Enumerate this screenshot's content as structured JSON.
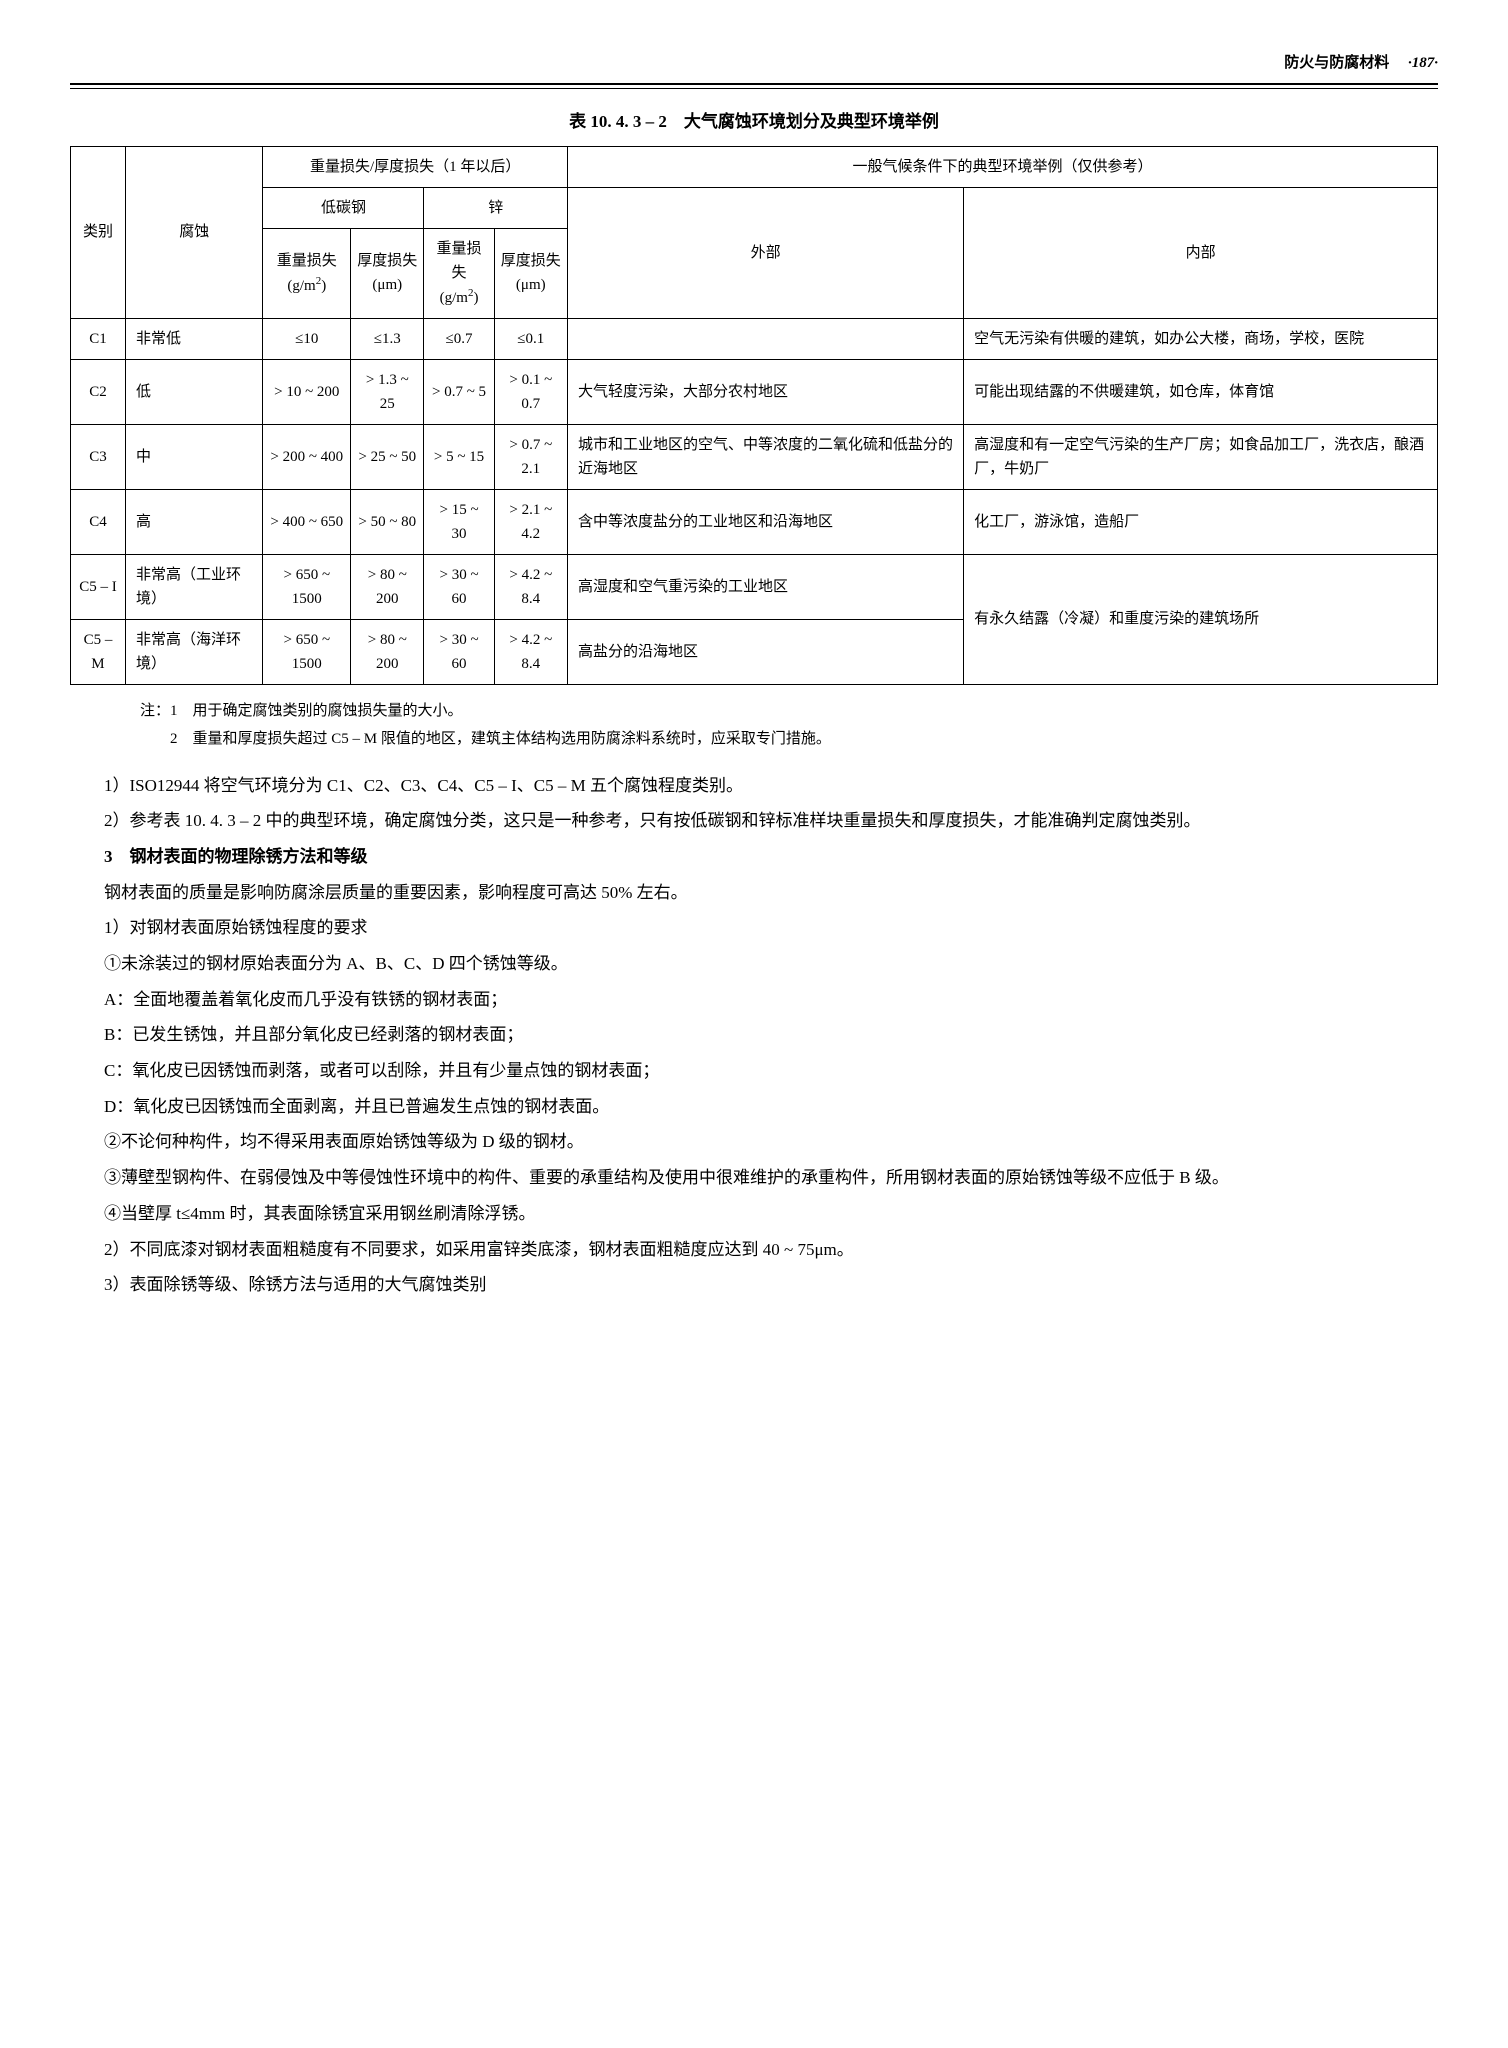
{
  "header": {
    "section": "防火与防腐材料",
    "dot": "·",
    "pageNum": "187"
  },
  "tableTitle": "表 10. 4. 3 – 2　大气腐蚀环境划分及典型环境举例",
  "tableHeaders": {
    "category": "类别",
    "corrosion": "腐蚀",
    "massLoss": "重量损失/厚度损失（1 年以后）",
    "typical": "一般气候条件下的典型环境举例（仅供参考）",
    "lowCarbon": "低碳钢",
    "zinc": "锌",
    "mass_g": "重量损失",
    "mass_unit": "(g/m²)",
    "depth_g": "厚度损失",
    "depth_unit": "(μm)",
    "outside": "外部",
    "inside": "内部"
  },
  "rows": [
    {
      "cat": "C1",
      "corr": "非常低",
      "m1": "≤10",
      "d1": "≤1.3",
      "m2": "≤0.7",
      "d2": "≤0.1",
      "out": "",
      "in": "空气无污染有供暖的建筑，如办公大楼，商场，学校，医院"
    },
    {
      "cat": "C2",
      "corr": "低",
      "m1": "> 10 ~ 200",
      "d1": "> 1.3 ~ 25",
      "m2": "> 0.7 ~ 5",
      "d2": "> 0.1 ~ 0.7",
      "out": "大气轻度污染，大部分农村地区",
      "in": "可能出现结露的不供暖建筑，如仓库，体育馆"
    },
    {
      "cat": "C3",
      "corr": "中",
      "m1": "> 200 ~ 400",
      "d1": "> 25 ~ 50",
      "m2": "> 5 ~ 15",
      "d2": "> 0.7 ~ 2.1",
      "out": "城市和工业地区的空气、中等浓度的二氧化硫和低盐分的近海地区",
      "in": "高湿度和有一定空气污染的生产厂房；如食品加工厂，洗衣店，酿酒厂，牛奶厂"
    },
    {
      "cat": "C4",
      "corr": "高",
      "m1": "> 400 ~ 650",
      "d1": "> 50 ~ 80",
      "m2": "> 15 ~ 30",
      "d2": "> 2.1 ~ 4.2",
      "out": "含中等浓度盐分的工业地区和沿海地区",
      "in": "化工厂，游泳馆，造船厂"
    },
    {
      "cat": "C5 – I",
      "corr": "非常高（工业环境）",
      "m1": "> 650 ~ 1500",
      "d1": "> 80 ~ 200",
      "m2": "> 30 ~ 60",
      "d2": "> 4.2 ~ 8.4",
      "out": "高湿度和空气重污染的工业地区",
      "in": ""
    },
    {
      "cat": "C5 – M",
      "corr": "非常高（海洋环境）",
      "m1": "> 650 ~ 1500",
      "d1": "> 80 ~ 200",
      "m2": "> 30 ~ 60",
      "d2": "> 4.2 ~ 8.4",
      "out": "高盐分的沿海地区",
      "in": "有永久结露（冷凝）和重度污染的建筑场所"
    }
  ],
  "notes": {
    "label": "注：",
    "n1": "1　用于确定腐蚀类别的腐蚀损失量的大小。",
    "n2": "2　重量和厚度损失超过 C5 – M 限值的地区，建筑主体结构选用防腐涂料系统时，应采取专门措施。"
  },
  "body": {
    "p1": "1）ISO12944 将空气环境分为 C1、C2、C3、C4、C5 – I、C5 – M 五个腐蚀程度类别。",
    "p2": "2）参考表 10. 4. 3 – 2 中的典型环境，确定腐蚀分类，这只是一种参考，只有按低碳钢和锌标准样块重量损失和厚度损失，才能准确判定腐蚀类别。",
    "h3": "3　钢材表面的物理除锈方法和等级",
    "p3": "钢材表面的质量是影响防腐涂层质量的重要因素，影响程度可高达 50% 左右。",
    "p4": "1）对钢材表面原始锈蚀程度的要求",
    "p5": "①未涂装过的钢材原始表面分为 A、B、C、D 四个锈蚀等级。",
    "p6": "A：全面地覆盖着氧化皮而几乎没有铁锈的钢材表面；",
    "p7": "B：已发生锈蚀，并且部分氧化皮已经剥落的钢材表面；",
    "p8": "C：氧化皮已因锈蚀而剥落，或者可以刮除，并且有少量点蚀的钢材表面；",
    "p9": "D：氧化皮已因锈蚀而全面剥离，并且已普遍发生点蚀的钢材表面。",
    "p10": "②不论何种构件，均不得采用表面原始锈蚀等级为 D 级的钢材。",
    "p11": "③薄壁型钢构件、在弱侵蚀及中等侵蚀性环境中的构件、重要的承重结构及使用中很难维护的承重构件，所用钢材表面的原始锈蚀等级不应低于 B 级。",
    "p12": "④当壁厚 t≤4mm 时，其表面除锈宜采用钢丝刷清除浮锈。",
    "p13": "2）不同底漆对钢材表面粗糙度有不同要求，如采用富锌类底漆，钢材表面粗糙度应达到 40 ~ 75μm。",
    "p14": "3）表面除锈等级、除锈方法与适用的大气腐蚀类别"
  }
}
